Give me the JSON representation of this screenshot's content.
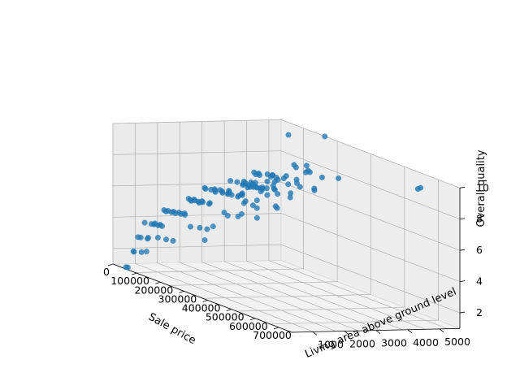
{
  "chart_data": {
    "type": "scatter",
    "projection": "3d",
    "title": "",
    "xlabel": "Sale price",
    "ylabel": "Living area above ground level",
    "zlabel": "Overall quality",
    "xlim": [
      0,
      755000
    ],
    "ylim": [
      334,
      5642
    ],
    "zlim": [
      1,
      10
    ],
    "x_ticks": [
      0,
      100000,
      200000,
      300000,
      400000,
      500000,
      600000,
      700000
    ],
    "y_ticks": [
      1000,
      2000,
      3000,
      4000,
      5000
    ],
    "z_ticks": [
      2,
      4,
      6,
      8,
      10
    ],
    "grid": true,
    "marker_color": "#1f77b4",
    "points": [
      [
        755000,
        4316,
        10
      ],
      [
        745000,
        4476,
        10
      ],
      [
        625000,
        2782,
        10
      ],
      [
        611657,
        2364,
        10
      ],
      [
        582933,
        2338,
        9
      ],
      [
        556581,
        2260,
        10
      ],
      [
        555000,
        2402,
        10
      ],
      [
        538000,
        2470,
        10
      ],
      [
        501837,
        2364,
        10
      ],
      [
        485000,
        2822,
        10
      ],
      [
        466500,
        2644,
        9
      ],
      [
        475000,
        2500,
        10
      ],
      [
        450000,
        2364,
        9
      ],
      [
        440000,
        2200,
        9
      ],
      [
        430000,
        2100,
        9
      ],
      [
        426000,
        2620,
        9
      ],
      [
        415298,
        2263,
        9
      ],
      [
        412500,
        2290,
        9
      ],
      [
        410000,
        1900,
        9
      ],
      [
        403000,
        2200,
        9
      ],
      [
        402000,
        1840,
        9
      ],
      [
        395000,
        2100,
        8
      ],
      [
        392500,
        2000,
        9
      ],
      [
        386250,
        2300,
        8
      ],
      [
        385000,
        2100,
        8
      ],
      [
        380000,
        1950,
        9
      ],
      [
        378500,
        2050,
        8
      ],
      [
        375000,
        2250,
        8
      ],
      [
        372402,
        1800,
        8
      ],
      [
        370878,
        2000,
        8
      ],
      [
        369900,
        1900,
        8
      ],
      [
        367294,
        2100,
        8
      ],
      [
        360000,
        2700,
        8
      ],
      [
        350000,
        2000,
        8
      ],
      [
        345000,
        1850,
        8
      ],
      [
        340000,
        2200,
        8
      ],
      [
        335000,
        1950,
        8
      ],
      [
        330000,
        2050,
        8
      ],
      [
        325000,
        2400,
        8
      ],
      [
        319900,
        2300,
        8
      ],
      [
        315000,
        1900,
        8
      ],
      [
        310000,
        2150,
        8
      ],
      [
        305000,
        2000,
        7
      ],
      [
        300000,
        1800,
        8
      ],
      [
        295000,
        2100,
        7
      ],
      [
        290000,
        2250,
        7
      ],
      [
        285000,
        1950,
        7
      ],
      [
        280000,
        2300,
        7
      ],
      [
        275000,
        1900,
        7
      ],
      [
        270000,
        2400,
        7
      ],
      [
        265000,
        2000,
        7
      ],
      [
        260000,
        1850,
        7
      ],
      [
        255000,
        2100,
        7
      ],
      [
        250000,
        1700,
        7
      ],
      [
        245000,
        1950,
        7
      ],
      [
        240000,
        2200,
        7
      ],
      [
        235000,
        1800,
        7
      ],
      [
        230000,
        2000,
        7
      ],
      [
        225000,
        1750,
        7
      ],
      [
        220000,
        1900,
        7
      ],
      [
        215000,
        1650,
        7
      ],
      [
        210000,
        1800,
        6
      ],
      [
        205000,
        1700,
        7
      ],
      [
        200000,
        1900,
        6
      ],
      [
        195000,
        1600,
        6
      ],
      [
        190000,
        1750,
        6
      ],
      [
        185000,
        1650,
        6
      ],
      [
        180000,
        1800,
        6
      ],
      [
        175000,
        1500,
        6
      ],
      [
        170000,
        1650,
        6
      ],
      [
        165000,
        1550,
        6
      ],
      [
        160000,
        1700,
        6
      ],
      [
        155000,
        1450,
        5
      ],
      [
        150000,
        1600,
        6
      ],
      [
        145000,
        1400,
        5
      ],
      [
        140000,
        1550,
        5
      ],
      [
        135000,
        1300,
        5
      ],
      [
        130000,
        1450,
        5
      ],
      [
        125000,
        1250,
        5
      ],
      [
        120000,
        1350,
        5
      ],
      [
        115000,
        1150,
        5
      ],
      [
        110000,
        1250,
        5
      ],
      [
        105000,
        1100,
        4
      ],
      [
        100000,
        1200,
        5
      ],
      [
        95000,
        1050,
        4
      ],
      [
        90000,
        1150,
        4
      ],
      [
        85000,
        1000,
        4
      ],
      [
        80000,
        950,
        4
      ],
      [
        75000,
        1100,
        4
      ],
      [
        70000,
        900,
        3
      ],
      [
        65000,
        850,
        4
      ],
      [
        60000,
        1000,
        3
      ],
      [
        55000,
        800,
        3
      ],
      [
        50000,
        750,
        3
      ],
      [
        45000,
        900,
        2
      ],
      [
        40000,
        700,
        2
      ],
      [
        37900,
        520,
        1
      ],
      [
        39300,
        1100,
        2
      ],
      [
        35311,
        480,
        1
      ],
      [
        34900,
        720,
        2
      ],
      [
        61000,
        1300,
        3
      ],
      [
        98000,
        1500,
        3
      ],
      [
        82000,
        1400,
        3
      ],
      [
        130500,
        2100,
        4
      ],
      [
        118000,
        1900,
        4
      ],
      [
        148000,
        2200,
        4
      ],
      [
        160000,
        3200,
        5
      ],
      [
        185000,
        2900,
        5
      ],
      [
        190000,
        3100,
        6
      ],
      [
        205000,
        3350,
        5
      ],
      [
        250000,
        3600,
        6
      ],
      [
        184750,
        3500,
        6
      ],
      [
        240000,
        3650,
        7
      ],
      [
        270000,
        3500,
        6
      ],
      [
        285000,
        3400,
        7
      ],
      [
        230000,
        3700,
        7
      ],
      [
        280000,
        3850,
        7
      ],
      [
        325000,
        3500,
        7
      ],
      [
        300000,
        3300,
        8
      ],
      [
        350000,
        3250,
        8
      ],
      [
        340000,
        3600,
        8
      ],
      [
        380000,
        3400,
        8
      ],
      [
        400000,
        3700,
        8
      ],
      [
        160000,
        4676,
        10
      ],
      [
        184750,
        5642,
        10
      ],
      [
        120000,
        2600,
        4
      ],
      [
        140000,
        2800,
        5
      ],
      [
        98000,
        2500,
        3
      ],
      [
        175000,
        2650,
        5
      ],
      [
        210000,
        2900,
        6
      ],
      [
        235000,
        3000,
        6
      ],
      [
        265000,
        2900,
        6
      ],
      [
        255000,
        3100,
        7
      ],
      [
        295000,
        3000,
        7
      ],
      [
        315000,
        2850,
        8
      ],
      [
        320000,
        3050,
        8
      ]
    ]
  }
}
